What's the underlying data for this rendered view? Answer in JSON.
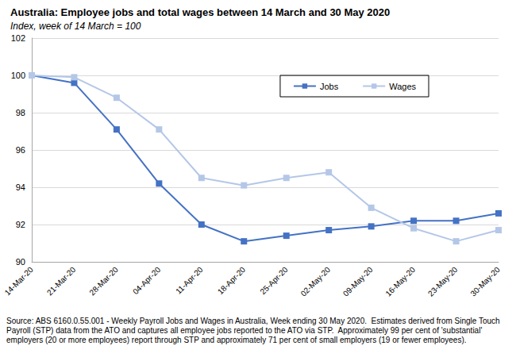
{
  "chart_data": {
    "type": "line",
    "title": "Australia: Employee jobs and total wages between 14 March and 30 May 2020",
    "subtitle": "Index, week of 14 March = 100",
    "source": "Source: ABS 6160.0.55.001 - Weekly Payroll Jobs and Wages in Australia, Week ending 30 May 2020.  Estimates derived from Single Touch Payroll (STP) data from the ATO and captures all employee jobs reported to the ATO via STP.  Approximately 99 per cent of 'substantial' employers (20 or more employees) report through STP and approximately 71 per cent of small employers (19 or fewer employees).",
    "categories": [
      "14-Mar-20",
      "21-Mar-20",
      "28-Mar-20",
      "04-Apr-20",
      "11-Apr-20",
      "18-Apr-20",
      "25-Apr-20",
      "02-May-20",
      "09-May-20",
      "16-May-20",
      "23-May-20",
      "30-May-20"
    ],
    "series": [
      {
        "name": "Jobs",
        "color": "#4472c4",
        "marker": "square",
        "values": [
          100,
          99.6,
          97.1,
          94.2,
          92.0,
          91.1,
          91.4,
          91.7,
          91.9,
          92.2,
          92.2,
          92.6
        ]
      },
      {
        "name": "Wages",
        "color": "#b4c7e7",
        "marker": "square",
        "values": [
          100,
          99.9,
          98.8,
          97.1,
          94.5,
          94.1,
          94.5,
          94.8,
          92.9,
          91.8,
          91.1,
          91.7
        ]
      }
    ],
    "ylim": [
      90,
      102
    ],
    "yticks": [
      90,
      92,
      94,
      96,
      98,
      100,
      102
    ],
    "grid": true,
    "legend": "top right"
  }
}
